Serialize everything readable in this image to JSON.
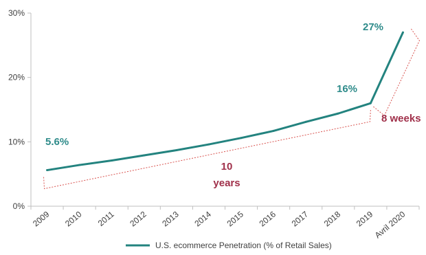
{
  "chart_data": {
    "type": "line",
    "categories": [
      "2009",
      "2010",
      "2011",
      "2012",
      "2013",
      "2014",
      "2015",
      "2016",
      "2017",
      "2018",
      "2019",
      "Avril 2020"
    ],
    "series": [
      {
        "name": "U.S. ecommerce  Penetration (% of Retail Sales)",
        "values": [
          5.6,
          6.4,
          7.1,
          7.9,
          8.7,
          9.6,
          10.6,
          11.7,
          13.1,
          14.4,
          16.0,
          27.0
        ],
        "color": "#23837f"
      }
    ],
    "ylim": [
      0,
      30
    ],
    "yticks": [
      "0%",
      "10%",
      "20%",
      "30%"
    ],
    "ytick_values": [
      0,
      10,
      20,
      30
    ],
    "legend": "bottom",
    "grid": false,
    "annotations": {
      "start_value": "5.6%",
      "value_2019": "16%",
      "value_2020": "27%",
      "span_ten_years_line1": "10",
      "span_ten_years_line2": "years",
      "span_eight_weeks": "8 weeks"
    },
    "colors": {
      "teal_label": "#2e8b8a",
      "red_label": "#a0304a",
      "bracket": "#d9534f",
      "axis": "#bfbfbf"
    }
  }
}
